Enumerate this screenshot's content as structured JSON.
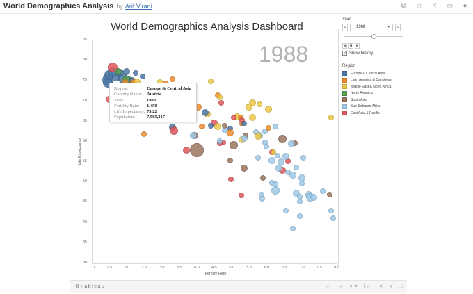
{
  "header": {
    "title": "World Demographics Analysis",
    "by": "by",
    "author": "Arif Virani",
    "icons": [
      "copy-icon",
      "star-icon",
      "share-icon",
      "comment-icon",
      "user-icon"
    ],
    "icon_glyphs": [
      "⧉",
      "☆",
      "<",
      "▭",
      "●"
    ]
  },
  "dashboard": {
    "title": "World Demographics Analysis Dashboard",
    "year_watermark": "1988"
  },
  "controls": {
    "year_label": "Year",
    "year_value": "1988",
    "prev": "<",
    "next": ">",
    "caret": "▾",
    "play_buttons": [
      "◂",
      "■",
      "▸"
    ],
    "show_history_label": "Show history",
    "show_history_checked": "✓"
  },
  "legend": {
    "title": "Region",
    "items": [
      {
        "label": "Europe & Central Asia",
        "color": "#4e79a7"
      },
      {
        "label": "Latin America & Caribbean",
        "color": "#f28e2b"
      },
      {
        "label": "Middle East & North Africa",
        "color": "#edc948"
      },
      {
        "label": "North America",
        "color": "#59a14f"
      },
      {
        "label": "South Asia",
        "color": "#9c755f"
      },
      {
        "label": "Sub-Saharan Africa",
        "color": "#a0cbe8"
      },
      {
        "label": "East Asia & Pacific",
        "color": "#e15759"
      }
    ]
  },
  "tooltip": {
    "rows": [
      {
        "k": "Region:",
        "v": "Europe & Central Asia"
      },
      {
        "k": "Country Name:",
        "v": "Austria"
      },
      {
        "k": "Year:",
        "v": "1988"
      },
      {
        "k": "Fertility Rate:",
        "v": "1.450"
      },
      {
        "k": "Life Expectancy:",
        "v": "75.22"
      },
      {
        "k": "Population:",
        "v": "7,585,317"
      }
    ]
  },
  "footer": {
    "brand": "⚙+ableau",
    "icons": [
      "undo-icon",
      "redo-icon",
      "revert-icon",
      "reset-icon",
      "share-icon",
      "download-icon",
      "fullscreen-icon"
    ],
    "glyphs": [
      "←",
      "→",
      "⇤▾",
      "|←",
      "⋖",
      "⭳",
      "⛶"
    ]
  },
  "chart_data": {
    "type": "scatter",
    "title": "World Demographics Analysis Dashboard",
    "xlabel": "Fertility Rate",
    "ylabel": "Life Expectancy",
    "xlim": [
      1.0,
      8.0
    ],
    "ylim": [
      30,
      85
    ],
    "x_ticks": [
      "1.0",
      "1.5",
      "2.0",
      "2.5",
      "3.0",
      "3.5",
      "4.0",
      "4.5",
      "5.0",
      "5.5",
      "6.0",
      "6.5",
      "7.0",
      "7.5",
      "8.0"
    ],
    "y_ticks": [
      "85",
      "80",
      "75",
      "70",
      "65",
      "60",
      "55",
      "50",
      "45",
      "40",
      "35",
      "30"
    ],
    "grid": false,
    "legend_position": "right",
    "annotation": "1988",
    "size_encoding": "Population",
    "color_encoding": "Region",
    "points": [
      {
        "r": "E",
        "x": 1.45,
        "y": 75.2,
        "s": 6
      },
      {
        "r": "E",
        "x": 1.5,
        "y": 76.5,
        "s": 5
      },
      {
        "r": "E",
        "x": 1.6,
        "y": 77.2,
        "s": 5
      },
      {
        "r": "EA",
        "x": 1.6,
        "y": 78.4,
        "s": 5
      },
      {
        "r": "E",
        "x": 1.7,
        "y": 76.0,
        "s": 4
      },
      {
        "r": "E",
        "x": 1.8,
        "y": 77.0,
        "s": 4
      },
      {
        "r": "N",
        "x": 1.75,
        "y": 77.3,
        "s": 3
      },
      {
        "r": "E",
        "x": 1.9,
        "y": 75.5,
        "s": 5
      },
      {
        "r": "E",
        "x": 2.0,
        "y": 77.3,
        "s": 3
      },
      {
        "r": "E",
        "x": 2.05,
        "y": 75.1,
        "s": 4
      },
      {
        "r": "N",
        "x": 2.0,
        "y": 75.0,
        "s": 5
      },
      {
        "r": "E",
        "x": 2.15,
        "y": 75.0,
        "s": 3
      },
      {
        "r": "E",
        "x": 2.25,
        "y": 77.0,
        "s": 2
      },
      {
        "r": "E",
        "x": 2.45,
        "y": 76.1,
        "s": 2
      },
      {
        "r": "L",
        "x": 1.95,
        "y": 74.6,
        "s": 3
      },
      {
        "r": "L",
        "x": 2.2,
        "y": 74.6,
        "s": 3
      },
      {
        "r": "M",
        "x": 2.3,
        "y": 74.8,
        "s": 3
      },
      {
        "r": "EA",
        "x": 1.5,
        "y": 70.5,
        "s": 3
      },
      {
        "r": "E",
        "x": 1.45,
        "y": 74.5,
        "s": 5
      },
      {
        "r": "M",
        "x": 2.95,
        "y": 74.5,
        "s": 3
      },
      {
        "r": "L",
        "x": 3.1,
        "y": 74.2,
        "s": 3
      },
      {
        "r": "L",
        "x": 3.3,
        "y": 75.4,
        "s": 2
      },
      {
        "r": "M",
        "x": 4.4,
        "y": 74.9,
        "s": 2
      },
      {
        "r": "L",
        "x": 4.6,
        "y": 71.5,
        "s": 2
      },
      {
        "r": "M",
        "x": 4.65,
        "y": 71.0,
        "s": 2
      },
      {
        "r": "EA",
        "x": 4.7,
        "y": 69.5,
        "s": 2
      },
      {
        "r": "E",
        "x": 3.3,
        "y": 63.6,
        "s": 3
      },
      {
        "r": "EA",
        "x": 3.35,
        "y": 62.8,
        "s": 4
      },
      {
        "r": "L",
        "x": 2.5,
        "y": 61.8,
        "s": 2
      },
      {
        "r": "S",
        "x": 4.0,
        "y": 58.0,
        "s": 8
      },
      {
        "r": "EA",
        "x": 3.7,
        "y": 58.0,
        "s": 3
      },
      {
        "r": "SA",
        "x": 3.95,
        "y": 61.5,
        "s": 3
      },
      {
        "r": "L",
        "x": 4.05,
        "y": 68.5,
        "s": 3
      },
      {
        "r": "M",
        "x": 4.3,
        "y": 66.8,
        "s": 3
      },
      {
        "r": "E",
        "x": 4.25,
        "y": 67.2,
        "s": 3
      },
      {
        "r": "EA",
        "x": 4.5,
        "y": 64.6,
        "s": 3
      },
      {
        "r": "M",
        "x": 4.6,
        "y": 63.7,
        "s": 3
      },
      {
        "r": "E",
        "x": 4.4,
        "y": 64.0,
        "s": 2
      },
      {
        "r": "SA",
        "x": 4.8,
        "y": 64.0,
        "s": 2
      },
      {
        "r": "E",
        "x": 4.95,
        "y": 63.3,
        "s": 2
      },
      {
        "r": "L",
        "x": 5.3,
        "y": 64.4,
        "s": 2
      },
      {
        "r": "M",
        "x": 5.15,
        "y": 66.2,
        "s": 3
      },
      {
        "r": "L",
        "x": 5.25,
        "y": 66.0,
        "s": 2
      },
      {
        "r": "EA",
        "x": 5.05,
        "y": 66.0,
        "s": 2
      },
      {
        "r": "EA",
        "x": 5.3,
        "y": 65.3,
        "s": 2
      },
      {
        "r": "E",
        "x": 5.35,
        "y": 64.5,
        "s": 2
      },
      {
        "r": "SA",
        "x": 5.4,
        "y": 61.5,
        "s": 2
      },
      {
        "r": "M",
        "x": 5.6,
        "y": 69.5,
        "s": 3
      },
      {
        "r": "M",
        "x": 5.8,
        "y": 69.3,
        "s": 2
      },
      {
        "r": "M",
        "x": 6.05,
        "y": 68.0,
        "s": 3
      },
      {
        "r": "M",
        "x": 5.5,
        "y": 68.6,
        "s": 3
      },
      {
        "r": "M",
        "x": 5.6,
        "y": 66.0,
        "s": 3
      },
      {
        "r": "SA",
        "x": 5.05,
        "y": 59.2,
        "s": 4
      },
      {
        "r": "EA",
        "x": 4.75,
        "y": 59.8,
        "s": 2
      },
      {
        "r": "EA",
        "x": 4.65,
        "y": 59.6,
        "s": 2
      },
      {
        "r": "M",
        "x": 5.3,
        "y": 60.5,
        "s": 3
      },
      {
        "r": "SA",
        "x": 6.45,
        "y": 60.6,
        "s": 4
      },
      {
        "r": "SA",
        "x": 6.8,
        "y": 59.6,
        "s": 2
      },
      {
        "r": "SA",
        "x": 4.95,
        "y": 55.3,
        "s": 2
      },
      {
        "r": "SA",
        "x": 5.35,
        "y": 53.5,
        "s": 3
      },
      {
        "r": "EA",
        "x": 4.98,
        "y": 50.8,
        "s": 2
      },
      {
        "r": "SA",
        "x": 5.9,
        "y": 51.0,
        "s": 2
      },
      {
        "r": "EA",
        "x": 5.28,
        "y": 46.8,
        "s": 2
      },
      {
        "r": "EA",
        "x": 6.15,
        "y": 57.5,
        "s": 2
      },
      {
        "r": "M",
        "x": 6.2,
        "y": 57.5,
        "s": 2
      },
      {
        "r": "EA",
        "x": 6.6,
        "y": 55.2,
        "s": 2
      },
      {
        "r": "EA",
        "x": 6.45,
        "y": 53.0,
        "s": 3
      },
      {
        "r": "SSA",
        "x": 5.8,
        "y": 61.5,
        "s": 3
      },
      {
        "r": "SSA",
        "x": 5.7,
        "y": 62.3,
        "s": 2
      },
      {
        "r": "SSA",
        "x": 5.95,
        "y": 62.6,
        "s": 2
      },
      {
        "r": "SSA",
        "x": 3.9,
        "y": 61.6,
        "s": 3
      },
      {
        "r": "SSA",
        "x": 5.35,
        "y": 60.9,
        "s": 3
      },
      {
        "r": "SSA",
        "x": 5.75,
        "y": 56.1,
        "s": 2
      },
      {
        "r": "SSA",
        "x": 5.95,
        "y": 59.8,
        "s": 2
      },
      {
        "r": "SSA",
        "x": 6.0,
        "y": 58.8,
        "s": 2
      },
      {
        "r": "SSA",
        "x": 6.7,
        "y": 59.4,
        "s": 3
      },
      {
        "r": "SSA",
        "x": 6.3,
        "y": 56.6,
        "s": 2
      },
      {
        "r": "SSA",
        "x": 6.55,
        "y": 56.4,
        "s": 3
      },
      {
        "r": "SSA",
        "x": 7.05,
        "y": 56.1,
        "s": 2
      },
      {
        "r": "SSA",
        "x": 6.4,
        "y": 55.0,
        "s": 3
      },
      {
        "r": "SSA",
        "x": 6.15,
        "y": 55.3,
        "s": 3
      },
      {
        "r": "SSA",
        "x": 6.35,
        "y": 53.5,
        "s": 3
      },
      {
        "r": "SSA",
        "x": 6.6,
        "y": 52.5,
        "s": 2
      },
      {
        "r": "SSA",
        "x": 6.85,
        "y": 53.7,
        "s": 2
      },
      {
        "r": "SSA",
        "x": 6.75,
        "y": 51.7,
        "s": 3
      },
      {
        "r": "SSA",
        "x": 7.0,
        "y": 51.0,
        "s": 3
      },
      {
        "r": "SSA",
        "x": 6.15,
        "y": 49.8,
        "s": 2
      },
      {
        "r": "SSA",
        "x": 6.25,
        "y": 49.6,
        "s": 2
      },
      {
        "r": "SSA",
        "x": 6.25,
        "y": 48.0,
        "s": 4
      },
      {
        "r": "SSA",
        "x": 5.85,
        "y": 47.0,
        "s": 2
      },
      {
        "r": "SSA",
        "x": 5.88,
        "y": 45.9,
        "s": 2
      },
      {
        "r": "SSA",
        "x": 6.85,
        "y": 47.3,
        "s": 3
      },
      {
        "r": "SSA",
        "x": 6.95,
        "y": 46.5,
        "s": 2
      },
      {
        "r": "SSA",
        "x": 7.2,
        "y": 46.9,
        "s": 3
      },
      {
        "r": "SSA",
        "x": 7.25,
        "y": 46.3,
        "s": 4
      },
      {
        "r": "SSA",
        "x": 7.35,
        "y": 46.3,
        "s": 3
      },
      {
        "r": "SSA",
        "x": 7.6,
        "y": 47.8,
        "s": 2
      },
      {
        "r": "SSA",
        "x": 7.0,
        "y": 49.7,
        "s": 2
      },
      {
        "r": "SSA",
        "x": 6.95,
        "y": 45.2,
        "s": 2
      },
      {
        "r": "SSA",
        "x": 6.55,
        "y": 43.0,
        "s": 2
      },
      {
        "r": "SSA",
        "x": 6.95,
        "y": 41.7,
        "s": 2
      },
      {
        "r": "SSA",
        "x": 6.75,
        "y": 38.6,
        "s": 2
      },
      {
        "r": "SSA",
        "x": 7.85,
        "y": 43.1,
        "s": 2
      },
      {
        "r": "SSA",
        "x": 7.9,
        "y": 41.1,
        "s": 2
      },
      {
        "r": "S",
        "x": 7.8,
        "y": 47.0,
        "s": 2
      },
      {
        "r": "M",
        "x": 7.85,
        "y": 66.0,
        "s": 2
      },
      {
        "r": "SSA",
        "x": 4.8,
        "y": 62.8,
        "s": 2
      },
      {
        "r": "SSA",
        "x": 4.65,
        "y": 60.1,
        "s": 2
      },
      {
        "r": "L",
        "x": 4.95,
        "y": 62.2,
        "s": 3
      },
      {
        "r": "L",
        "x": 4.15,
        "y": 63.7,
        "s": 2
      },
      {
        "r": "M",
        "x": 5.75,
        "y": 61.3,
        "s": 3
      },
      {
        "r": "L",
        "x": 6.05,
        "y": 63.4,
        "s": 2
      },
      {
        "r": "SSA",
        "x": 6.25,
        "y": 63.7,
        "s": 2
      }
    ]
  }
}
